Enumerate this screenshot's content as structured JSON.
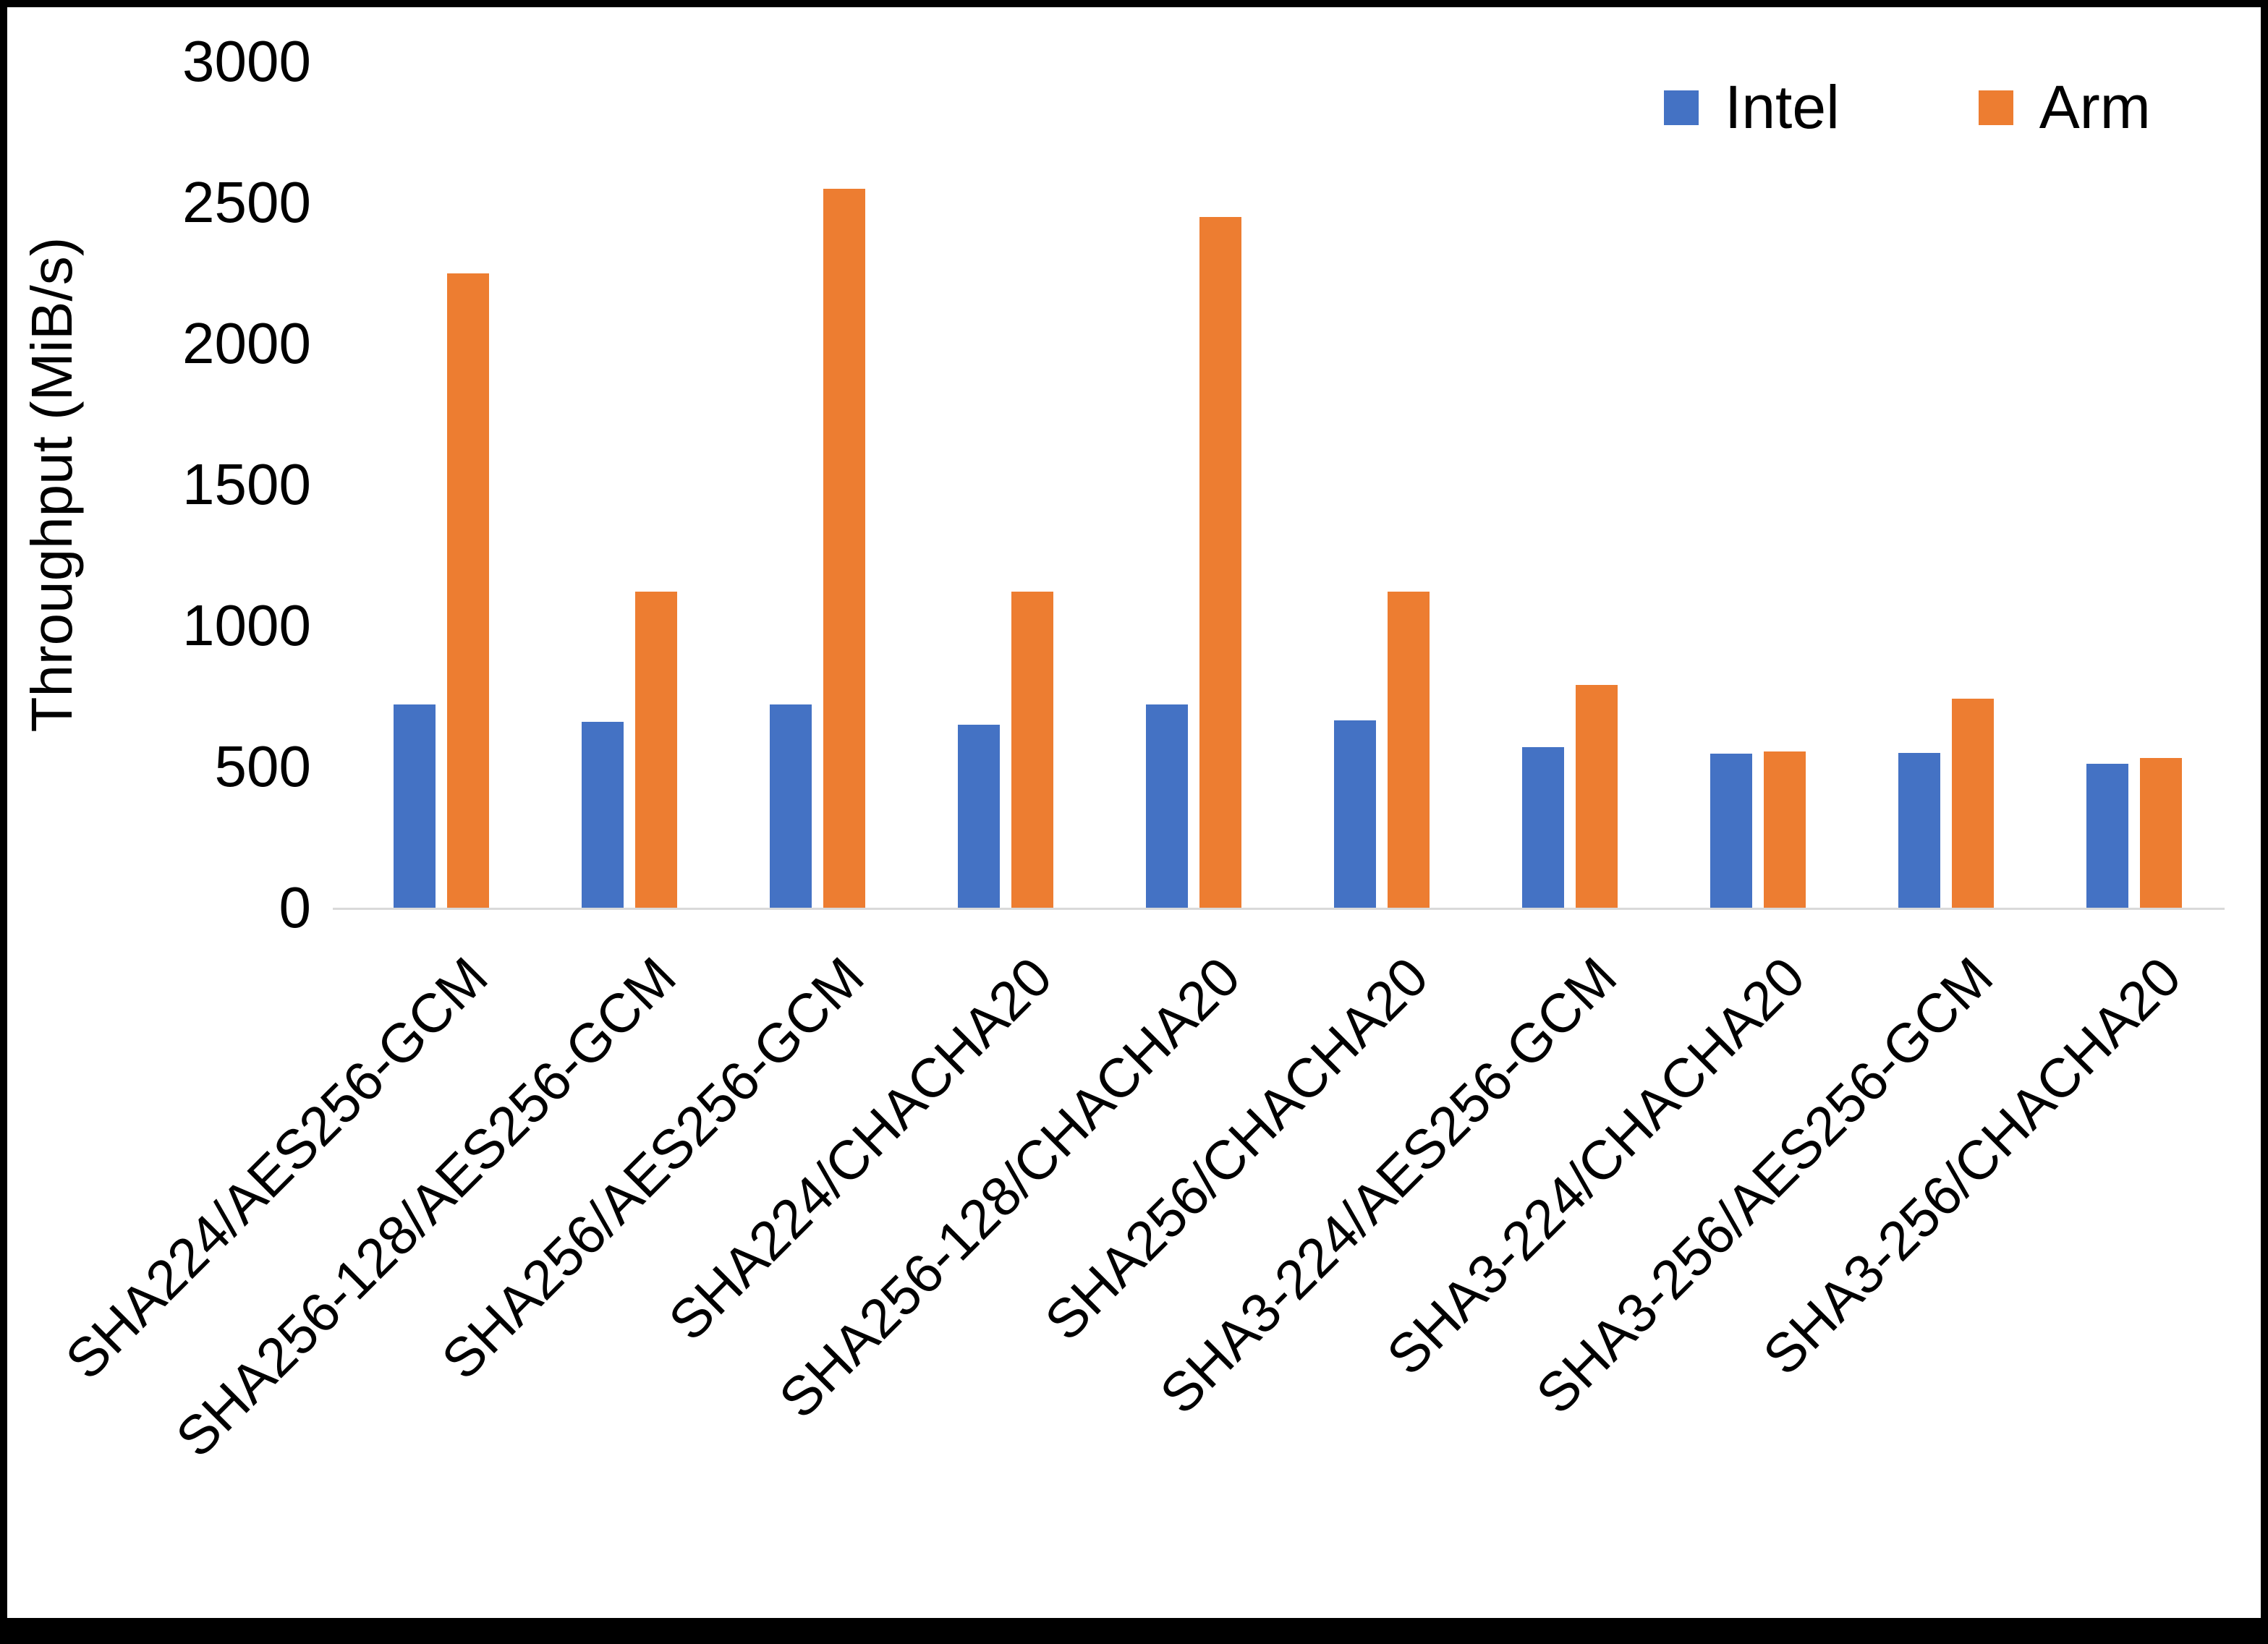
{
  "chart_data": {
    "type": "bar",
    "title": "",
    "xlabel": "",
    "ylabel": "Throughput (MiB/s)",
    "ylim": [
      0,
      3000
    ],
    "yticks": [
      0,
      500,
      1000,
      1500,
      2000,
      2500,
      3000
    ],
    "grid": false,
    "legend_position": "top-right",
    "categories": [
      "SHA224/AES256-GCM",
      "SHA256-128/AES256-GCM",
      "SHA256/AES256-GCM",
      "SHA224/CHACHA20",
      "SHA256-128/CHACHA20",
      "SHA256/CHACHA20",
      "SHA3-224/AES256-GCM",
      "SHA3-224/CHACHA20",
      "SHA3-256/AES256-GCM",
      "SHA3-256/CHACHA20"
    ],
    "series": [
      {
        "name": "Intel",
        "color": "#4472C4",
        "values": [
          720,
          660,
          720,
          650,
          720,
          665,
          570,
          545,
          550,
          510
        ]
      },
      {
        "name": "Arm",
        "color": "#ED7D31",
        "values": [
          2250,
          1120,
          2550,
          1120,
          2450,
          1120,
          790,
          555,
          740,
          530
        ]
      }
    ]
  }
}
